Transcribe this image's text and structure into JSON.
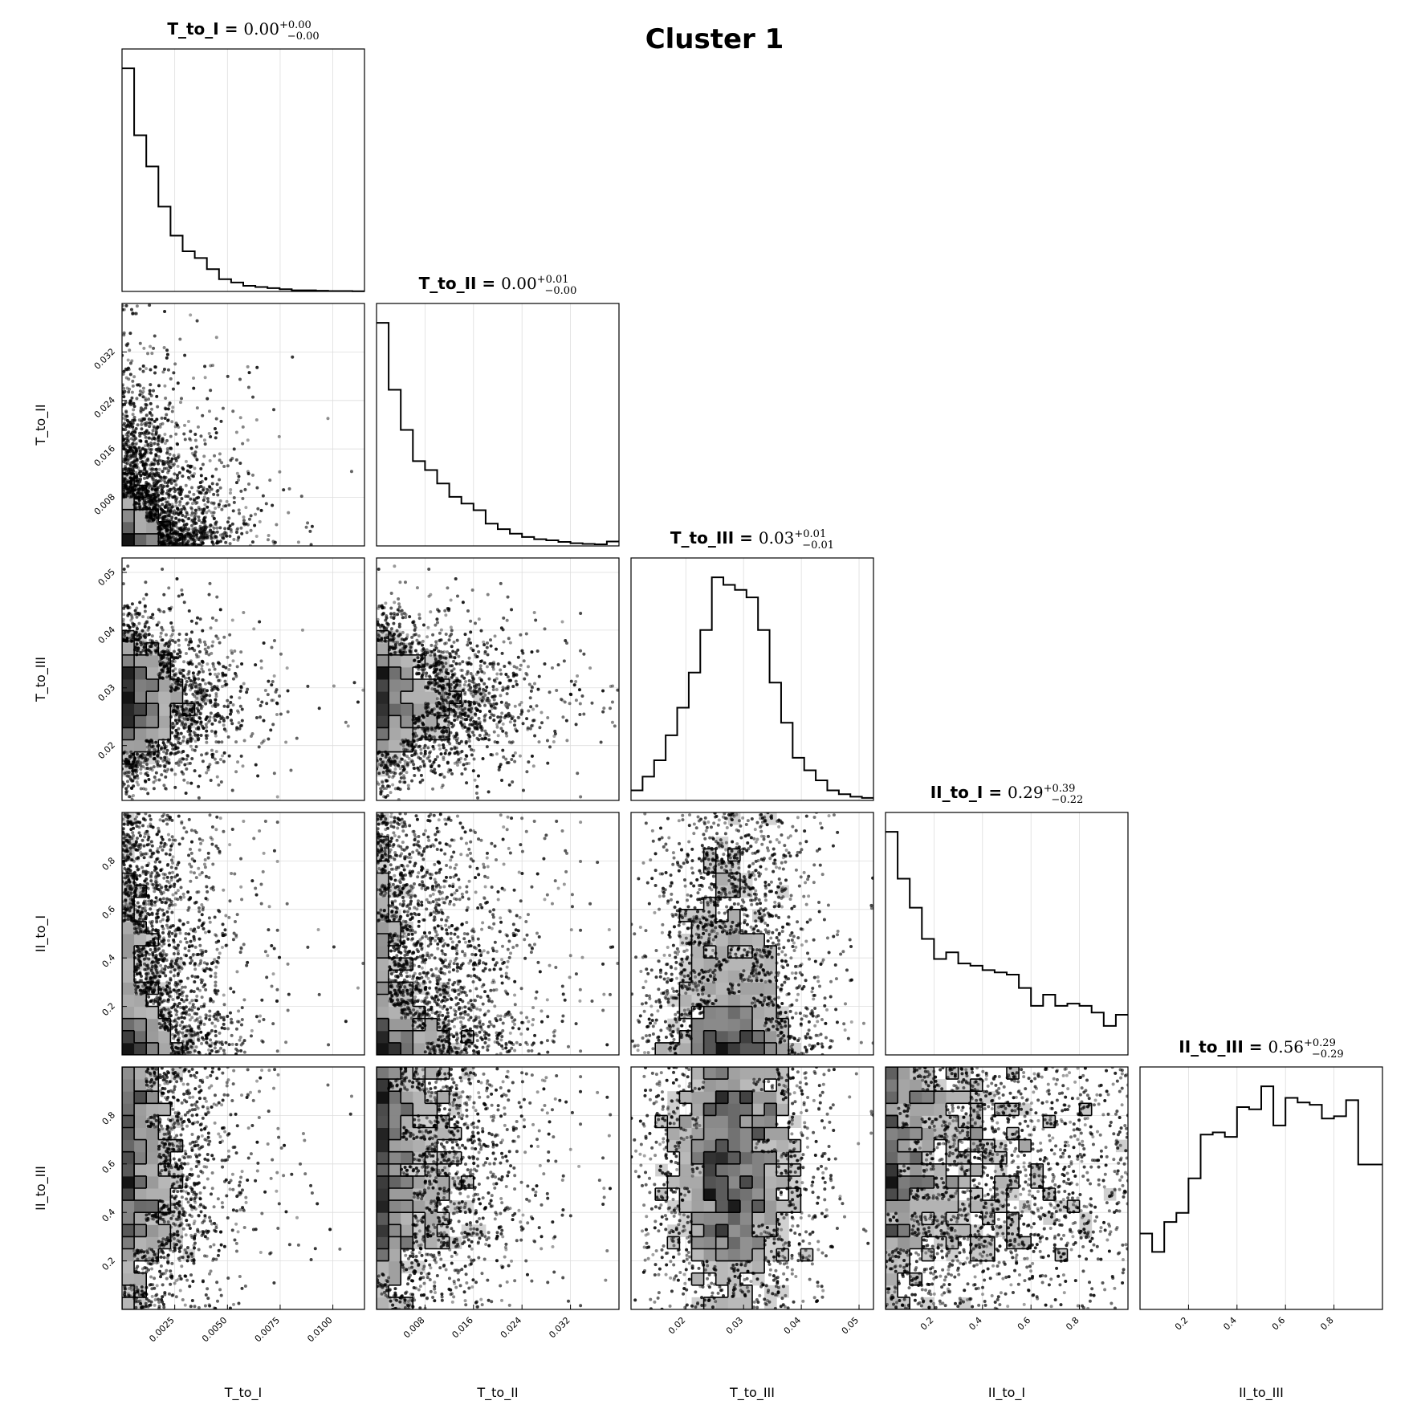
{
  "title": "Cluster 1",
  "chart_data": {
    "type": "corner",
    "title": "Cluster 1",
    "parameters": [
      {
        "name": "T_to_I",
        "range": [
          0,
          0.0115
        ],
        "ticks": [
          "0.0025",
          "0.0050",
          "0.0075",
          "0.0100"
        ],
        "tick_values": [
          0.0025,
          0.005,
          0.0075,
          0.01
        ],
        "median": "0.00",
        "plus": "+0.00",
        "minus": "−0.00"
      },
      {
        "name": "T_to_II",
        "range": [
          0,
          0.04
        ],
        "ticks": [
          "0.008",
          "0.016",
          "0.024",
          "0.032"
        ],
        "tick_values": [
          0.008,
          0.016,
          0.024,
          0.032
        ],
        "median": "0.00",
        "plus": "+0.01",
        "minus": "−0.00"
      },
      {
        "name": "T_to_III",
        "range": [
          0.0105,
          0.0525
        ],
        "ticks": [
          "0.02",
          "0.03",
          "0.04",
          "0.05"
        ],
        "tick_values": [
          0.02,
          0.03,
          0.04,
          0.05
        ],
        "median": "0.03",
        "plus": "+0.01",
        "minus": "−0.01"
      },
      {
        "name": "II_to_I",
        "range": [
          0,
          1
        ],
        "ticks": [
          "0.2",
          "0.4",
          "0.6",
          "0.8"
        ],
        "tick_values": [
          0.2,
          0.4,
          0.6,
          0.8
        ],
        "median": "0.29",
        "plus": "+0.39",
        "minus": "−0.22"
      },
      {
        "name": "II_to_III",
        "range": [
          0,
          1
        ],
        "ticks": [
          "0.2",
          "0.4",
          "0.6",
          "0.8"
        ],
        "tick_values": [
          0.2,
          0.4,
          0.6,
          0.8
        ],
        "median": "0.56",
        "plus": "+0.29",
        "minus": "−0.29"
      }
    ],
    "histograms": [
      {
        "param": "T_to_I",
        "counts": [
          1.0,
          0.7,
          0.56,
          0.38,
          0.25,
          0.18,
          0.15,
          0.1,
          0.055,
          0.04,
          0.025,
          0.02,
          0.015,
          0.01,
          0.005,
          0.005,
          0.003,
          0.002,
          0.002,
          0.001
        ]
      },
      {
        "param": "T_to_II",
        "counts": [
          1.0,
          0.7,
          0.52,
          0.38,
          0.34,
          0.28,
          0.22,
          0.19,
          0.16,
          0.1,
          0.075,
          0.055,
          0.04,
          0.03,
          0.025,
          0.018,
          0.012,
          0.009,
          0.007,
          0.02
        ]
      },
      {
        "param": "T_to_III",
        "counts": [
          0.04,
          0.095,
          0.16,
          0.26,
          0.37,
          0.51,
          0.68,
          0.89,
          0.86,
          0.84,
          0.81,
          0.68,
          0.47,
          0.31,
          0.17,
          0.12,
          0.08,
          0.04,
          0.025,
          0.015,
          0.01
        ]
      },
      {
        "param": "II_to_I",
        "counts": [
          1.0,
          0.79,
          0.66,
          0.52,
          0.43,
          0.46,
          0.41,
          0.4,
          0.38,
          0.37,
          0.36,
          0.3,
          0.22,
          0.27,
          0.22,
          0.23,
          0.22,
          0.19,
          0.13,
          0.18
        ]
      },
      {
        "param": "II_to_III",
        "counts": [
          0.33,
          0.25,
          0.38,
          0.42,
          0.57,
          0.76,
          0.77,
          0.75,
          0.88,
          0.87,
          0.97,
          0.8,
          0.92,
          0.9,
          0.89,
          0.83,
          0.84,
          0.91,
          0.63,
          0.63
        ]
      }
    ],
    "pairs": [
      {
        "x": "T_to_I",
        "y": "T_to_II"
      },
      {
        "x": "T_to_I",
        "y": "T_to_III"
      },
      {
        "x": "T_to_II",
        "y": "T_to_III"
      },
      {
        "x": "T_to_I",
        "y": "II_to_I"
      },
      {
        "x": "T_to_II",
        "y": "II_to_I"
      },
      {
        "x": "T_to_III",
        "y": "II_to_I"
      },
      {
        "x": "T_to_I",
        "y": "II_to_III"
      },
      {
        "x": "T_to_II",
        "y": "II_to_III"
      },
      {
        "x": "T_to_III",
        "y": "II_to_III"
      },
      {
        "x": "II_to_I",
        "y": "II_to_III"
      }
    ],
    "grid": true
  }
}
